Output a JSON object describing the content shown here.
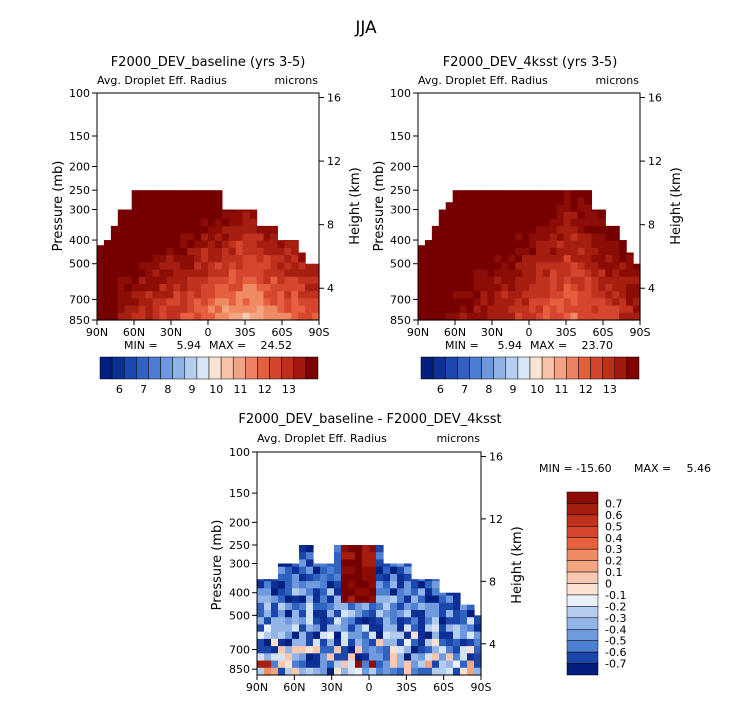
{
  "figure": {
    "title": "JJA"
  },
  "colors": {
    "warm_scale": [
      "#fbe3d4",
      "#f8c8b0",
      "#f4a582",
      "#ef8a62",
      "#e6603f",
      "#d6452e",
      "#c0311e",
      "#a51e10",
      "#8c0d05",
      "#760000"
    ],
    "cool_scale": [
      "#eaf1fb",
      "#d4e3f6",
      "#b4cdef",
      "#92b4e7",
      "#6f9ade",
      "#4d7fd2",
      "#2f63c2",
      "#1b47ad",
      "#0d2f96",
      "#011f7e"
    ],
    "bar_scale": [
      "#011f7e",
      "#0c2f95",
      "#1c47ad",
      "#3061c3",
      "#4c7dd2",
      "#6c99dd",
      "#90b3e6",
      "#b5cdef",
      "#d8e6f7",
      "#fbe3d4",
      "#f6c2a8",
      "#f2a383",
      "#ec8263",
      "#e2603f",
      "#d4432c",
      "#bf2e1c",
      "#a2180d",
      "#7d0303"
    ]
  },
  "chart_data": [
    {
      "type": "heatmap",
      "title": "F2000_DEV_baseline (yrs 3-5)",
      "subtitle_left": "Avg. Droplet Eff. Radius",
      "subtitle_right": "microns",
      "ylabel": "Pressure (mb)",
      "y2label": "Height (km)",
      "x_ticks": [
        "90N",
        "60N",
        "30N",
        "0",
        "30S",
        "60S",
        "90S"
      ],
      "y_ticks": [
        "100",
        "150",
        "200",
        "250",
        "300",
        "400",
        "500",
        "700",
        "850"
      ],
      "y2_ticks": [
        "16",
        "12",
        "8",
        "4"
      ],
      "stats": {
        "min_label": "MIN =",
        "min": "5.94",
        "max_label": "MAX =",
        "max": "24.52"
      },
      "colorbar_labels": [
        "6",
        "7",
        "8",
        "9",
        "10",
        "11",
        "12",
        "13"
      ],
      "cloud_top": [
        420,
        400,
        350,
        300,
        300,
        250,
        250,
        250,
        250,
        250,
        250,
        250,
        250,
        250,
        250,
        250,
        250,
        250,
        300,
        300,
        300,
        300,
        300,
        350,
        350,
        350,
        400,
        400,
        400,
        450,
        500,
        500
      ],
      "pale_center": 21,
      "pale_bottom": 1.0
    },
    {
      "type": "heatmap",
      "title": "F2000_DEV_4ksst (yrs 3-5)",
      "subtitle_left": "Avg. Droplet Eff. Radius",
      "subtitle_right": "microns",
      "ylabel": "Pressure (mb)",
      "y2label": "Height (km)",
      "x_ticks": [
        "90N",
        "60N",
        "30N",
        "0",
        "30S",
        "60S",
        "90S"
      ],
      "y_ticks": [
        "100",
        "150",
        "200",
        "250",
        "300",
        "400",
        "500",
        "700",
        "850"
      ],
      "y2_ticks": [
        "16",
        "12",
        "8",
        "4"
      ],
      "stats": {
        "min_label": "MIN =",
        "min": "5.94",
        "max_label": "MAX =",
        "max": "23.70"
      },
      "colorbar_labels": [
        "6",
        "7",
        "8",
        "9",
        "10",
        "11",
        "12",
        "13"
      ],
      "cloud_top": [
        420,
        400,
        350,
        300,
        280,
        250,
        250,
        250,
        250,
        250,
        250,
        250,
        250,
        250,
        250,
        250,
        250,
        250,
        250,
        250,
        250,
        250,
        250,
        250,
        250,
        300,
        300,
        350,
        350,
        400,
        450,
        500
      ],
      "pale_center": 21,
      "pale_bottom": 0.75
    },
    {
      "type": "heatmap",
      "title": "F2000_DEV_baseline - F2000_DEV_4ksst",
      "subtitle_left": "Avg. Droplet Eff. Radius",
      "subtitle_right": "microns",
      "ylabel": "Pressure (mb)",
      "y2label": "Height (km)",
      "x_ticks": [
        "90N",
        "60N",
        "30N",
        "0",
        "30S",
        "60S",
        "90S"
      ],
      "y_ticks": [
        "100",
        "150",
        "200",
        "250",
        "300",
        "400",
        "500",
        "700",
        "850"
      ],
      "y2_ticks": [
        "16",
        "12",
        "8",
        "4"
      ],
      "stats": {
        "min_label": "MIN = -15.60",
        "max_label": "MAX =",
        "max": "5.46"
      },
      "colorbar_labels": [
        "0.7",
        "0.6",
        "0.5",
        "0.4",
        "0.3",
        "0.2",
        "0.1",
        "0",
        "-0.1",
        "-0.2",
        "-0.3",
        "-0.4",
        "-0.5",
        "-0.6",
        "-0.7"
      ],
      "cloud_top": [
        350,
        350,
        350,
        300,
        300,
        300,
        250,
        250,
        300,
        300,
        300,
        250,
        250,
        250,
        250,
        250,
        250,
        250,
        300,
        300,
        300,
        300,
        350,
        350,
        350,
        350,
        400,
        400,
        400,
        450,
        450,
        500
      ],
      "positive_center": 14
    }
  ]
}
